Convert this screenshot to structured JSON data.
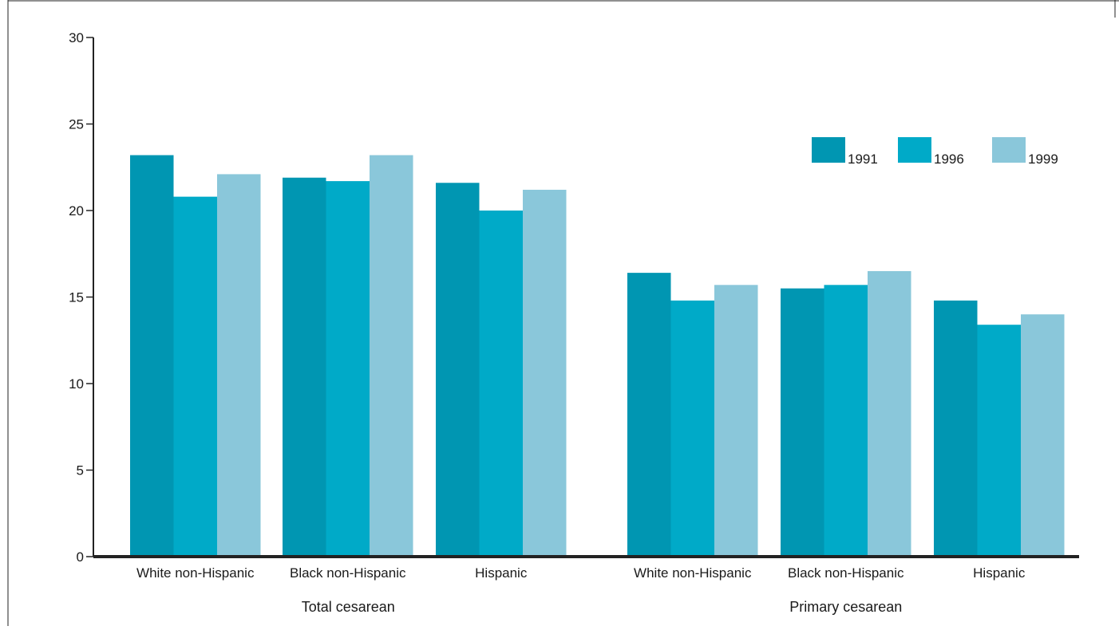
{
  "chart_data": {
    "type": "bar",
    "groups": [
      {
        "label": "Total cesarean",
        "categories": [
          "White non-Hispanic",
          "Black non-Hispanic",
          "Hispanic"
        ],
        "series": [
          {
            "name": "1991",
            "values": [
              23.2,
              21.9,
              21.6
            ]
          },
          {
            "name": "1996",
            "values": [
              20.8,
              21.7,
              20.0
            ]
          },
          {
            "name": "1999",
            "values": [
              22.1,
              23.2,
              21.2
            ]
          }
        ]
      },
      {
        "label": "Primary cesarean",
        "categories": [
          "White non-Hispanic",
          "Black non-Hispanic",
          "Hispanic"
        ],
        "series": [
          {
            "name": "1991",
            "values": [
              16.4,
              15.5,
              14.8
            ]
          },
          {
            "name": "1996",
            "values": [
              14.8,
              15.7,
              13.4
            ]
          },
          {
            "name": "1999",
            "values": [
              15.7,
              16.5,
              14.0
            ]
          }
        ]
      }
    ],
    "ylim": [
      0,
      30
    ],
    "yticks": [
      "0",
      "5",
      "10",
      "15",
      "20",
      "25",
      "30"
    ],
    "legend": {
      "placement": "top-right",
      "entries": [
        "1991",
        "1996",
        "1999"
      ]
    },
    "colors": {
      "1991": "#0096b2",
      "1996": "#00aac8",
      "1999": "#8ac7da"
    },
    "grid": false
  }
}
